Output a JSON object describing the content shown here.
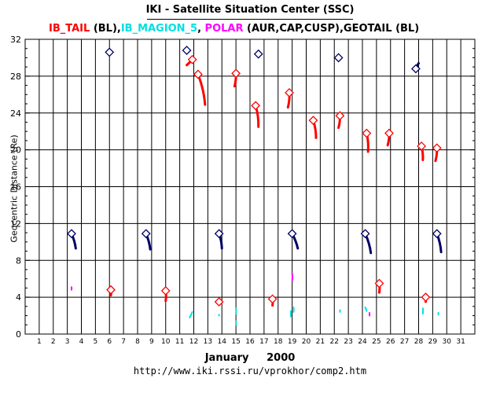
{
  "title": "IKI - Satellite Situation Center (SSC)",
  "legend": [
    {
      "text": "IB_TAIL",
      "color": "#ff0000"
    },
    {
      "text": " (BL),",
      "color": "#000000"
    },
    {
      "text": "IB_MAGION_5",
      "color": "#00e0e0"
    },
    {
      "text": ", ",
      "color": "#000000"
    },
    {
      "text": "POLAR",
      "color": "#ff00ff"
    },
    {
      "text": " (AUR,CAP,CUSP),GEOTAIL (BL)",
      "color": "#000000"
    }
  ],
  "footer_url": "http://www.iki.rssi.ru/vprokhor/comp2.htm",
  "chart_data": {
    "type": "scatter",
    "title": "IKI - Satellite Situation Center (SSC)",
    "xlabel": "January     2000",
    "ylabel": "Geocentric Distance (Re)",
    "xlim": [
      1,
      31
    ],
    "ylim": [
      0,
      32
    ],
    "x_ticks": [
      "1",
      "2",
      "3",
      "4",
      "5",
      "6",
      "7",
      "8",
      "9",
      "10",
      "11",
      "12",
      "13",
      "14",
      "15",
      "16",
      "17",
      "18",
      "19",
      "20",
      "21",
      "22",
      "23",
      "24",
      "25",
      "26",
      "27",
      "28",
      "29",
      "30",
      "31"
    ],
    "y_ticks": [
      "0",
      "4",
      "8",
      "12",
      "16",
      "20",
      "24",
      "28",
      "32"
    ],
    "grid": true,
    "colors": {
      "IB_TAIL": "#ff0000",
      "IB_MAGION_5": "#00e0e0",
      "POLAR": "#ff00ff",
      "GEOTAIL": "#000066"
    },
    "series": [
      {
        "name": "GEOTAIL",
        "color": "#000066",
        "segments": [
          {
            "start": [
              6.0,
              30.6
            ],
            "end": [
              6.0,
              30.6
            ]
          },
          {
            "start": [
              11.5,
              30.8
            ],
            "end": [
              11.5,
              30.8
            ]
          },
          {
            "start": [
              16.6,
              30.4
            ],
            "end": [
              16.6,
              30.4
            ]
          },
          {
            "start": [
              22.3,
              30.0
            ],
            "end": [
              22.3,
              30.0
            ]
          },
          {
            "start": [
              27.8,
              28.8
            ],
            "end": [
              28.0,
              29.4
            ]
          },
          {
            "start": [
              3.3,
              10.9
            ],
            "end": [
              3.6,
              9.3
            ]
          },
          {
            "start": [
              8.6,
              10.9
            ],
            "end": [
              8.9,
              9.2
            ]
          },
          {
            "start": [
              13.8,
              10.9
            ],
            "end": [
              14.0,
              9.3
            ]
          },
          {
            "start": [
              19.0,
              10.9
            ],
            "end": [
              19.4,
              9.3
            ]
          },
          {
            "start": [
              24.2,
              10.9
            ],
            "end": [
              24.6,
              8.8
            ]
          },
          {
            "start": [
              29.3,
              10.9
            ],
            "end": [
              29.6,
              8.9
            ]
          }
        ]
      },
      {
        "name": "IB_TAIL",
        "color": "#ff0000",
        "segments": [
          {
            "start": [
              11.9,
              29.8
            ],
            "end": [
              11.5,
              29.2
            ]
          },
          {
            "start": [
              12.3,
              28.2
            ],
            "end": [
              12.8,
              24.9
            ]
          },
          {
            "start": [
              15.0,
              28.3
            ],
            "end": [
              14.9,
              26.9
            ]
          },
          {
            "start": [
              16.4,
              24.8
            ],
            "end": [
              16.6,
              22.5
            ]
          },
          {
            "start": [
              18.8,
              26.2
            ],
            "end": [
              18.7,
              24.6
            ]
          },
          {
            "start": [
              20.5,
              23.2
            ],
            "end": [
              20.7,
              21.3
            ]
          },
          {
            "start": [
              22.4,
              23.7
            ],
            "end": [
              22.3,
              22.4
            ]
          },
          {
            "start": [
              24.3,
              21.8
            ],
            "end": [
              24.4,
              19.8
            ]
          },
          {
            "start": [
              25.9,
              21.8
            ],
            "end": [
              25.8,
              20.5
            ]
          },
          {
            "start": [
              28.2,
              20.4
            ],
            "end": [
              28.3,
              18.9
            ]
          },
          {
            "start": [
              29.3,
              20.2
            ],
            "end": [
              29.2,
              18.8
            ]
          },
          {
            "start": [
              6.1,
              4.8
            ],
            "end": [
              6.1,
              4.2
            ]
          },
          {
            "start": [
              10.0,
              4.7
            ],
            "end": [
              10.0,
              3.6
            ]
          },
          {
            "start": [
              13.8,
              3.5
            ],
            "end": [
              13.8,
              3.2
            ]
          },
          {
            "start": [
              17.6,
              3.8
            ],
            "end": [
              17.6,
              3.1
            ]
          },
          {
            "start": [
              25.2,
              5.5
            ],
            "end": [
              25.2,
              4.5
            ]
          },
          {
            "start": [
              28.5,
              4.0
            ],
            "end": [
              28.5,
              3.5
            ]
          }
        ]
      },
      {
        "name": "IB_MAGION_5",
        "color": "#00e0e0",
        "segments": [
          {
            "start": [
              11.9,
              2.4
            ],
            "end": [
              11.7,
              1.8
            ]
          },
          {
            "start": [
              13.8,
              2.1
            ],
            "end": [
              13.8,
              2.0
            ]
          },
          {
            "start": [
              15.0,
              2.8
            ],
            "end": [
              15.0,
              2.2
            ]
          },
          {
            "start": [
              15.0,
              1.4
            ],
            "end": [
              15.0,
              1.0
            ]
          },
          {
            "start": [
              18.9,
              2.5
            ],
            "end": [
              18.9,
              1.9
            ]
          },
          {
            "start": [
              19.1,
              2.9
            ],
            "end": [
              19.1,
              2.4
            ]
          },
          {
            "start": [
              22.4,
              2.6
            ],
            "end": [
              22.4,
              2.4
            ]
          },
          {
            "start": [
              24.2,
              2.9
            ],
            "end": [
              24.3,
              2.5
            ]
          },
          {
            "start": [
              28.3,
              2.8
            ],
            "end": [
              28.3,
              2.2
            ]
          },
          {
            "start": [
              29.4,
              2.3
            ],
            "end": [
              29.4,
              2.1
            ]
          }
        ]
      },
      {
        "name": "POLAR",
        "color": "#ff00ff",
        "segments": [
          {
            "start": [
              3.3,
              5.1
            ],
            "end": [
              3.3,
              4.8
            ]
          },
          {
            "start": [
              19.0,
              6.6
            ],
            "end": [
              19.0,
              5.8
            ]
          },
          {
            "start": [
              24.5,
              2.3
            ],
            "end": [
              24.5,
              2.0
            ]
          }
        ]
      }
    ]
  }
}
